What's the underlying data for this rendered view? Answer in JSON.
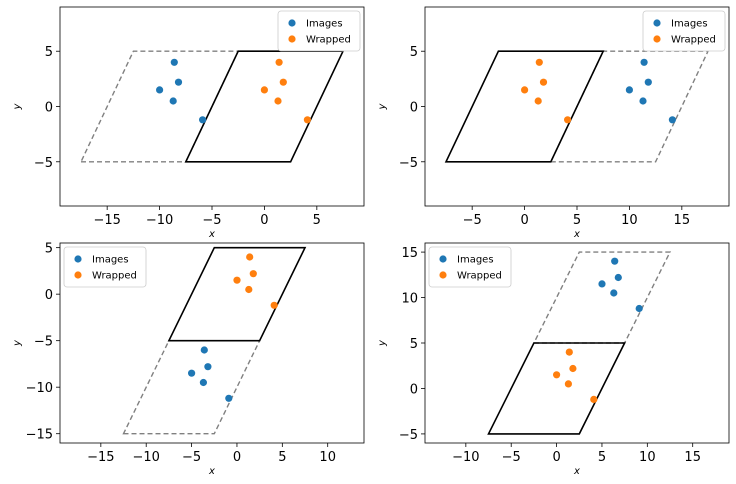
{
  "chart_data": [
    {
      "type": "scatter",
      "xlabel": "x",
      "ylabel": "y",
      "xlim": [
        -19.5,
        9.5
      ],
      "ylim": [
        -9,
        9
      ],
      "xticks": [
        -15,
        -10,
        -5,
        0,
        5
      ],
      "yticks": [
        -5,
        0,
        5
      ],
      "legend_position": "top-right",
      "grid": false,
      "cells": [
        {
          "name": "",
          "style": "dashed",
          "color": "#808080",
          "vertices": [
            [
              -17.5,
              -5
            ],
            [
              -7.5,
              -5
            ],
            [
              -2.5,
              5
            ],
            [
              -12.5,
              5
            ]
          ]
        },
        {
          "name": "",
          "style": "solid",
          "color": "#000000",
          "vertices": [
            [
              -7.5,
              -5
            ],
            [
              2.5,
              -5
            ],
            [
              7.5,
              5
            ],
            [
              -2.5,
              5
            ]
          ]
        }
      ],
      "series": [
        {
          "name": "Images",
          "color": "#1f77b4",
          "points": [
            [
              -8.6,
              4.0
            ],
            [
              -8.2,
              2.2
            ],
            [
              -10.0,
              1.5
            ],
            [
              -8.7,
              0.5
            ],
            [
              -5.9,
              -1.2
            ]
          ]
        },
        {
          "name": "Wrapped",
          "color": "#ff7f0e",
          "points": [
            [
              1.4,
              4.0
            ],
            [
              1.8,
              2.2
            ],
            [
              0.0,
              1.5
            ],
            [
              1.3,
              0.5
            ],
            [
              4.1,
              -1.2
            ]
          ]
        }
      ]
    },
    {
      "type": "scatter",
      "xlabel": "x",
      "ylabel": "y",
      "xlim": [
        -9.5,
        19.5
      ],
      "ylim": [
        -9,
        9
      ],
      "xticks": [
        -5,
        0,
        5,
        10,
        15
      ],
      "yticks": [
        -5,
        0,
        5
      ],
      "legend_position": "top-right",
      "grid": false,
      "cells": [
        {
          "name": "",
          "style": "dashed",
          "color": "#808080",
          "vertices": [
            [
              2.5,
              -5
            ],
            [
              12.5,
              -5
            ],
            [
              17.5,
              5
            ],
            [
              7.5,
              5
            ]
          ]
        },
        {
          "name": "",
          "style": "solid",
          "color": "#000000",
          "vertices": [
            [
              -7.5,
              -5
            ],
            [
              2.5,
              -5
            ],
            [
              7.5,
              5
            ],
            [
              -2.5,
              5
            ]
          ]
        }
      ],
      "series": [
        {
          "name": "Images",
          "color": "#1f77b4",
          "points": [
            [
              11.4,
              4.0
            ],
            [
              11.8,
              2.2
            ],
            [
              10.0,
              1.5
            ],
            [
              11.3,
              0.5
            ],
            [
              14.1,
              -1.2
            ]
          ]
        },
        {
          "name": "Wrapped",
          "color": "#ff7f0e",
          "points": [
            [
              1.4,
              4.0
            ],
            [
              1.8,
              2.2
            ],
            [
              0.0,
              1.5
            ],
            [
              1.3,
              0.5
            ],
            [
              4.1,
              -1.2
            ]
          ]
        }
      ]
    },
    {
      "type": "scatter",
      "xlabel": "x",
      "ylabel": "y",
      "xlim": [
        -19.5,
        14
      ],
      "ylim": [
        -16,
        5.5
      ],
      "xticks": [
        -15,
        -10,
        -5,
        0,
        5,
        10
      ],
      "yticks": [
        -15,
        -10,
        -5,
        0,
        5
      ],
      "legend_position": "top-left",
      "grid": false,
      "cells": [
        {
          "name": "",
          "style": "dashed",
          "color": "#808080",
          "vertices": [
            [
              -12.5,
              -15
            ],
            [
              -2.5,
              -15
            ],
            [
              2.5,
              -5
            ],
            [
              -7.5,
              -5
            ]
          ]
        },
        {
          "name": "",
          "style": "solid",
          "color": "#000000",
          "vertices": [
            [
              -7.5,
              -5
            ],
            [
              2.5,
              -5
            ],
            [
              7.5,
              5
            ],
            [
              -2.5,
              5
            ]
          ]
        }
      ],
      "series": [
        {
          "name": "Images",
          "color": "#1f77b4",
          "points": [
            [
              -3.6,
              -6.0
            ],
            [
              -3.2,
              -7.8
            ],
            [
              -5.0,
              -8.5
            ],
            [
              -3.7,
              -9.5
            ],
            [
              -0.9,
              -11.2
            ]
          ]
        },
        {
          "name": "Wrapped",
          "color": "#ff7f0e",
          "points": [
            [
              1.4,
              4.0
            ],
            [
              1.8,
              2.2
            ],
            [
              0.0,
              1.5
            ],
            [
              1.3,
              0.5
            ],
            [
              4.1,
              -1.2
            ]
          ]
        }
      ]
    },
    {
      "type": "scatter",
      "xlabel": "x",
      "ylabel": "y",
      "xlim": [
        -14.5,
        19
      ],
      "ylim": [
        -6,
        16
      ],
      "xticks": [
        -10,
        -5,
        0,
        5,
        10,
        15
      ],
      "yticks": [
        -5,
        0,
        5,
        10,
        15
      ],
      "legend_position": "top-left",
      "grid": false,
      "cells": [
        {
          "name": "",
          "style": "dashed",
          "color": "#808080",
          "vertices": [
            [
              -2.5,
              5
            ],
            [
              7.5,
              5
            ],
            [
              12.5,
              15
            ],
            [
              2.5,
              15
            ]
          ]
        },
        {
          "name": "",
          "style": "solid",
          "color": "#000000",
          "vertices": [
            [
              -7.5,
              -5
            ],
            [
              2.5,
              -5
            ],
            [
              7.5,
              5
            ],
            [
              -2.5,
              5
            ]
          ]
        }
      ],
      "series": [
        {
          "name": "Images",
          "color": "#1f77b4",
          "points": [
            [
              6.4,
              14.0
            ],
            [
              6.8,
              12.2
            ],
            [
              5.0,
              11.5
            ],
            [
              6.3,
              10.5
            ],
            [
              9.1,
              8.8
            ]
          ]
        },
        {
          "name": "Wrapped",
          "color": "#ff7f0e",
          "points": [
            [
              1.4,
              4.0
            ],
            [
              1.8,
              2.2
            ],
            [
              0.0,
              1.5
            ],
            [
              1.3,
              0.5
            ],
            [
              4.1,
              -1.2
            ]
          ]
        }
      ]
    }
  ]
}
